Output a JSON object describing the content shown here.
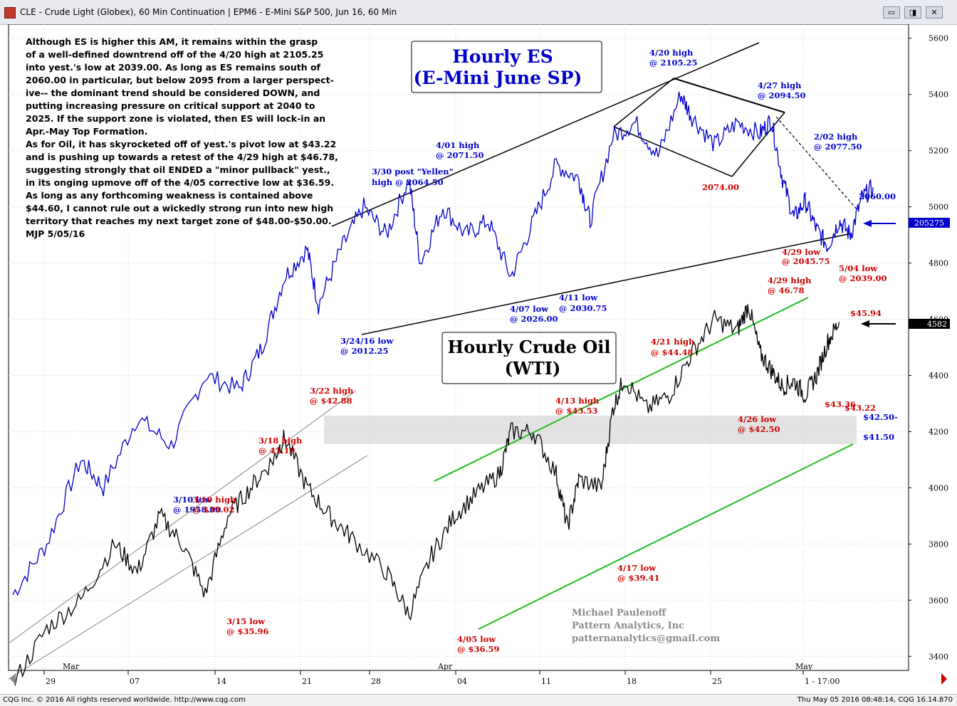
{
  "window": {
    "title": "CLE - Crude Light (Globex), 60 Min Continuation   |   EPM6 - E-Mini S&P 500, Jun 16, 60 Min",
    "buttons": [
      "▭",
      "◨",
      "✕"
    ]
  },
  "status": {
    "left": "CQG Inc. © 2016 All rights reserved worldwide.  http://www.cqg.com",
    "right": "Thu May 05 2016 08:48:14, CQG 16.14.870"
  },
  "commentary": "    Although ES is higher this AM, it remains within the grasp\nof a well-defined downtrend off of the 4/20 high at 2105.25\ninto yest.'s low at 2039.00. As long as ES remains south of\n2060.00 in particular, but below 2095 from a larger perspect-\nive-- the dominant trend should be considered DOWN, and\nputting increasing pressure on critical support at 2040 to\n2025. If the support zone is violated, then ES will lock-in an\nApr.-May Top Formation.\n    As for Oil, it has skyrocketed off of yest.'s pivot low at $43.22\nand is pushing up towards a retest of the 4/29 high at $46.78,\nsuggesting strongly that oil ENDED a \"minor pullback\" yest.,\nin its onging upmove off of the 4/05 corrective low at $36.59.\nAs long as any forthcoming weakness is contained above\n$44.60, I cannot rule out a wickedly strong run into new high\nterritory that reaches my next target zone of $48.00-$50.00.\nMJP 5/05/16",
  "labels": {
    "es_title_1": "Hourly ES",
    "es_title_2": "(E-Mini June SP)",
    "oil_title_1": "Hourly Crude Oil",
    "oil_title_2": "(WTI)",
    "sig_1": "Michael Paulenoff",
    "sig_2": "Pattern Analytics, Inc",
    "sig_3": "patternanalytics@gmail.com",
    "price_box_es": "205275",
    "price_box_oil": "4582"
  },
  "chart_data": {
    "type": "line",
    "x_ticks": [
      "29",
      "07",
      "14",
      "21",
      "28",
      "04",
      "11",
      "18",
      "25",
      "1 - 17:00"
    ],
    "month_labels": [
      "Mar",
      "Apr",
      "May"
    ],
    "y_ticks": [
      5600,
      5400,
      5200,
      5000,
      4800,
      4600,
      4400,
      4200,
      4000,
      3800,
      3600,
      3400
    ],
    "ylim": [
      3350,
      5650
    ],
    "series": [
      {
        "name": "ES",
        "color": "#0000cc",
        "points": [
          [
            0,
            3620
          ],
          [
            3,
            3800
          ],
          [
            6,
            4100
          ],
          [
            8,
            4000
          ],
          [
            11,
            4250
          ],
          [
            14,
            4150
          ],
          [
            17,
            4400
          ],
          [
            20,
            4350
          ],
          [
            22,
            4500
          ],
          [
            24,
            4750
          ],
          [
            26,
            4850
          ],
          [
            27,
            4650
          ],
          [
            29,
            4850
          ],
          [
            31,
            5000
          ],
          [
            33,
            4900
          ],
          [
            35,
            5100
          ],
          [
            36,
            4800
          ],
          [
            38,
            5000
          ],
          [
            40,
            4900
          ],
          [
            42,
            4950
          ],
          [
            44,
            4750
          ],
          [
            46,
            4950
          ],
          [
            48,
            5150
          ],
          [
            50,
            5100
          ],
          [
            51,
            4950
          ],
          [
            53,
            5250
          ],
          [
            55,
            5300
          ],
          [
            57,
            5180
          ],
          [
            59,
            5400
          ],
          [
            60,
            5320
          ],
          [
            62,
            5220
          ],
          [
            64,
            5300
          ],
          [
            66,
            5260
          ],
          [
            67,
            5310
          ],
          [
            68,
            5100
          ],
          [
            69,
            4960
          ],
          [
            70,
            5020
          ],
          [
            71,
            4920
          ],
          [
            72,
            4860
          ],
          [
            73,
            4950
          ],
          [
            74,
            4900
          ],
          [
            75,
            5030
          ],
          [
            76,
            5070
          ]
        ]
      },
      {
        "name": "Crude Oil",
        "color": "#000000",
        "points": [
          [
            0,
            3300
          ],
          [
            3,
            3500
          ],
          [
            6,
            3600
          ],
          [
            9,
            3800
          ],
          [
            11,
            3700
          ],
          [
            13,
            3900
          ],
          [
            15,
            3800
          ],
          [
            17,
            3620
          ],
          [
            19,
            3900
          ],
          [
            21,
            4000
          ],
          [
            23,
            4100
          ],
          [
            24,
            4180
          ],
          [
            26,
            4000
          ],
          [
            28,
            3900
          ],
          [
            30,
            3820
          ],
          [
            33,
            3700
          ],
          [
            35,
            3550
          ],
          [
            37,
            3760
          ],
          [
            39,
            3900
          ],
          [
            41,
            3980
          ],
          [
            43,
            4050
          ],
          [
            44,
            4200
          ],
          [
            46,
            4200
          ],
          [
            48,
            4050
          ],
          [
            49,
            3860
          ],
          [
            50,
            4030
          ],
          [
            52,
            4000
          ],
          [
            53,
            4280
          ],
          [
            54,
            4390
          ],
          [
            56,
            4280
          ],
          [
            58,
            4330
          ],
          [
            60,
            4480
          ],
          [
            62,
            4600
          ],
          [
            64,
            4560
          ],
          [
            65,
            4650
          ],
          [
            66,
            4480
          ],
          [
            67,
            4420
          ],
          [
            68,
            4360
          ],
          [
            69,
            4380
          ],
          [
            70,
            4330
          ],
          [
            71,
            4400
          ],
          [
            72,
            4520
          ],
          [
            73,
            4590
          ]
        ]
      }
    ]
  },
  "annotations": [
    {
      "text": "4/20 high",
      "color": "#0000cc"
    },
    {
      "text": "@ 2105.25",
      "color": "#0000cc"
    },
    {
      "text": "4/27 high",
      "color": "#0000cc"
    },
    {
      "text": "@ 2094.50",
      "color": "#0000cc"
    },
    {
      "text": "2/02 high",
      "color": "#0000cc"
    },
    {
      "text": "@ 2077.50",
      "color": "#0000cc"
    },
    {
      "text": "2060.00",
      "color": "#0000cc"
    },
    {
      "text": "4/01 high",
      "color": "#0000cc"
    },
    {
      "text": "@ 2071.50",
      "color": "#0000cc"
    },
    {
      "text": "3/30 post \"Yellen\"",
      "color": "#0000cc"
    },
    {
      "text": "high @ 2064.50",
      "color": "#0000cc"
    },
    {
      "text": "2074.00",
      "color": "#cc0000"
    },
    {
      "text": "4/29 low",
      "color": "#cc0000"
    },
    {
      "text": "@ 2045.75",
      "color": "#cc0000"
    },
    {
      "text": "5/04 low",
      "color": "#cc0000"
    },
    {
      "text": "@ 2039.00",
      "color": "#cc0000"
    },
    {
      "text": "4/29 high",
      "color": "#cc0000"
    },
    {
      "text": "@ 46.78",
      "color": "#cc0000"
    },
    {
      "text": "$45.94",
      "color": "#cc0000"
    },
    {
      "text": "4/11 low",
      "color": "#0000cc"
    },
    {
      "text": "@ 2030.75",
      "color": "#0000cc"
    },
    {
      "text": "4/07 low",
      "color": "#0000cc"
    },
    {
      "text": "@ 2026.00",
      "color": "#0000cc"
    },
    {
      "text": "3/24/16 low",
      "color": "#0000cc"
    },
    {
      "text": "@ 2012.25",
      "color": "#0000cc"
    },
    {
      "text": "4/21 high",
      "color": "#cc0000"
    },
    {
      "text": "@ $44.48",
      "color": "#cc0000"
    },
    {
      "text": "3/22 high",
      "color": "#cc0000"
    },
    {
      "text": "@ $42.88",
      "color": "#cc0000"
    },
    {
      "text": "4/13 high",
      "color": "#cc0000"
    },
    {
      "text": "@ $43.53",
      "color": "#cc0000"
    },
    {
      "text": "$43.36",
      "color": "#cc0000"
    },
    {
      "text": "$43.22",
      "color": "#cc0000"
    },
    {
      "text": "4/26 low",
      "color": "#cc0000"
    },
    {
      "text": "@ $42.50",
      "color": "#cc0000"
    },
    {
      "text": "$42.50-",
      "color": "#0000cc"
    },
    {
      "text": "$41.50",
      "color": "#0000cc"
    },
    {
      "text": "3/18 high",
      "color": "#cc0000"
    },
    {
      "text": "@ 41.19",
      "color": "#cc0000"
    },
    {
      "text": "3/10 low",
      "color": "#0000cc"
    },
    {
      "text": "@ 1958.00",
      "color": "#0000cc"
    },
    {
      "text": "3/10 high",
      "color": "#cc0000"
    },
    {
      "text": "@ $39.02",
      "color": "#cc0000"
    },
    {
      "text": "4/17 low",
      "color": "#cc0000"
    },
    {
      "text": "@ $39.41",
      "color": "#cc0000"
    },
    {
      "text": "3/15 low",
      "color": "#cc0000"
    },
    {
      "text": "@ $35.96",
      "color": "#cc0000"
    },
    {
      "text": "4/05 low",
      "color": "#cc0000"
    },
    {
      "text": "@ $36.59",
      "color": "#cc0000"
    }
  ]
}
